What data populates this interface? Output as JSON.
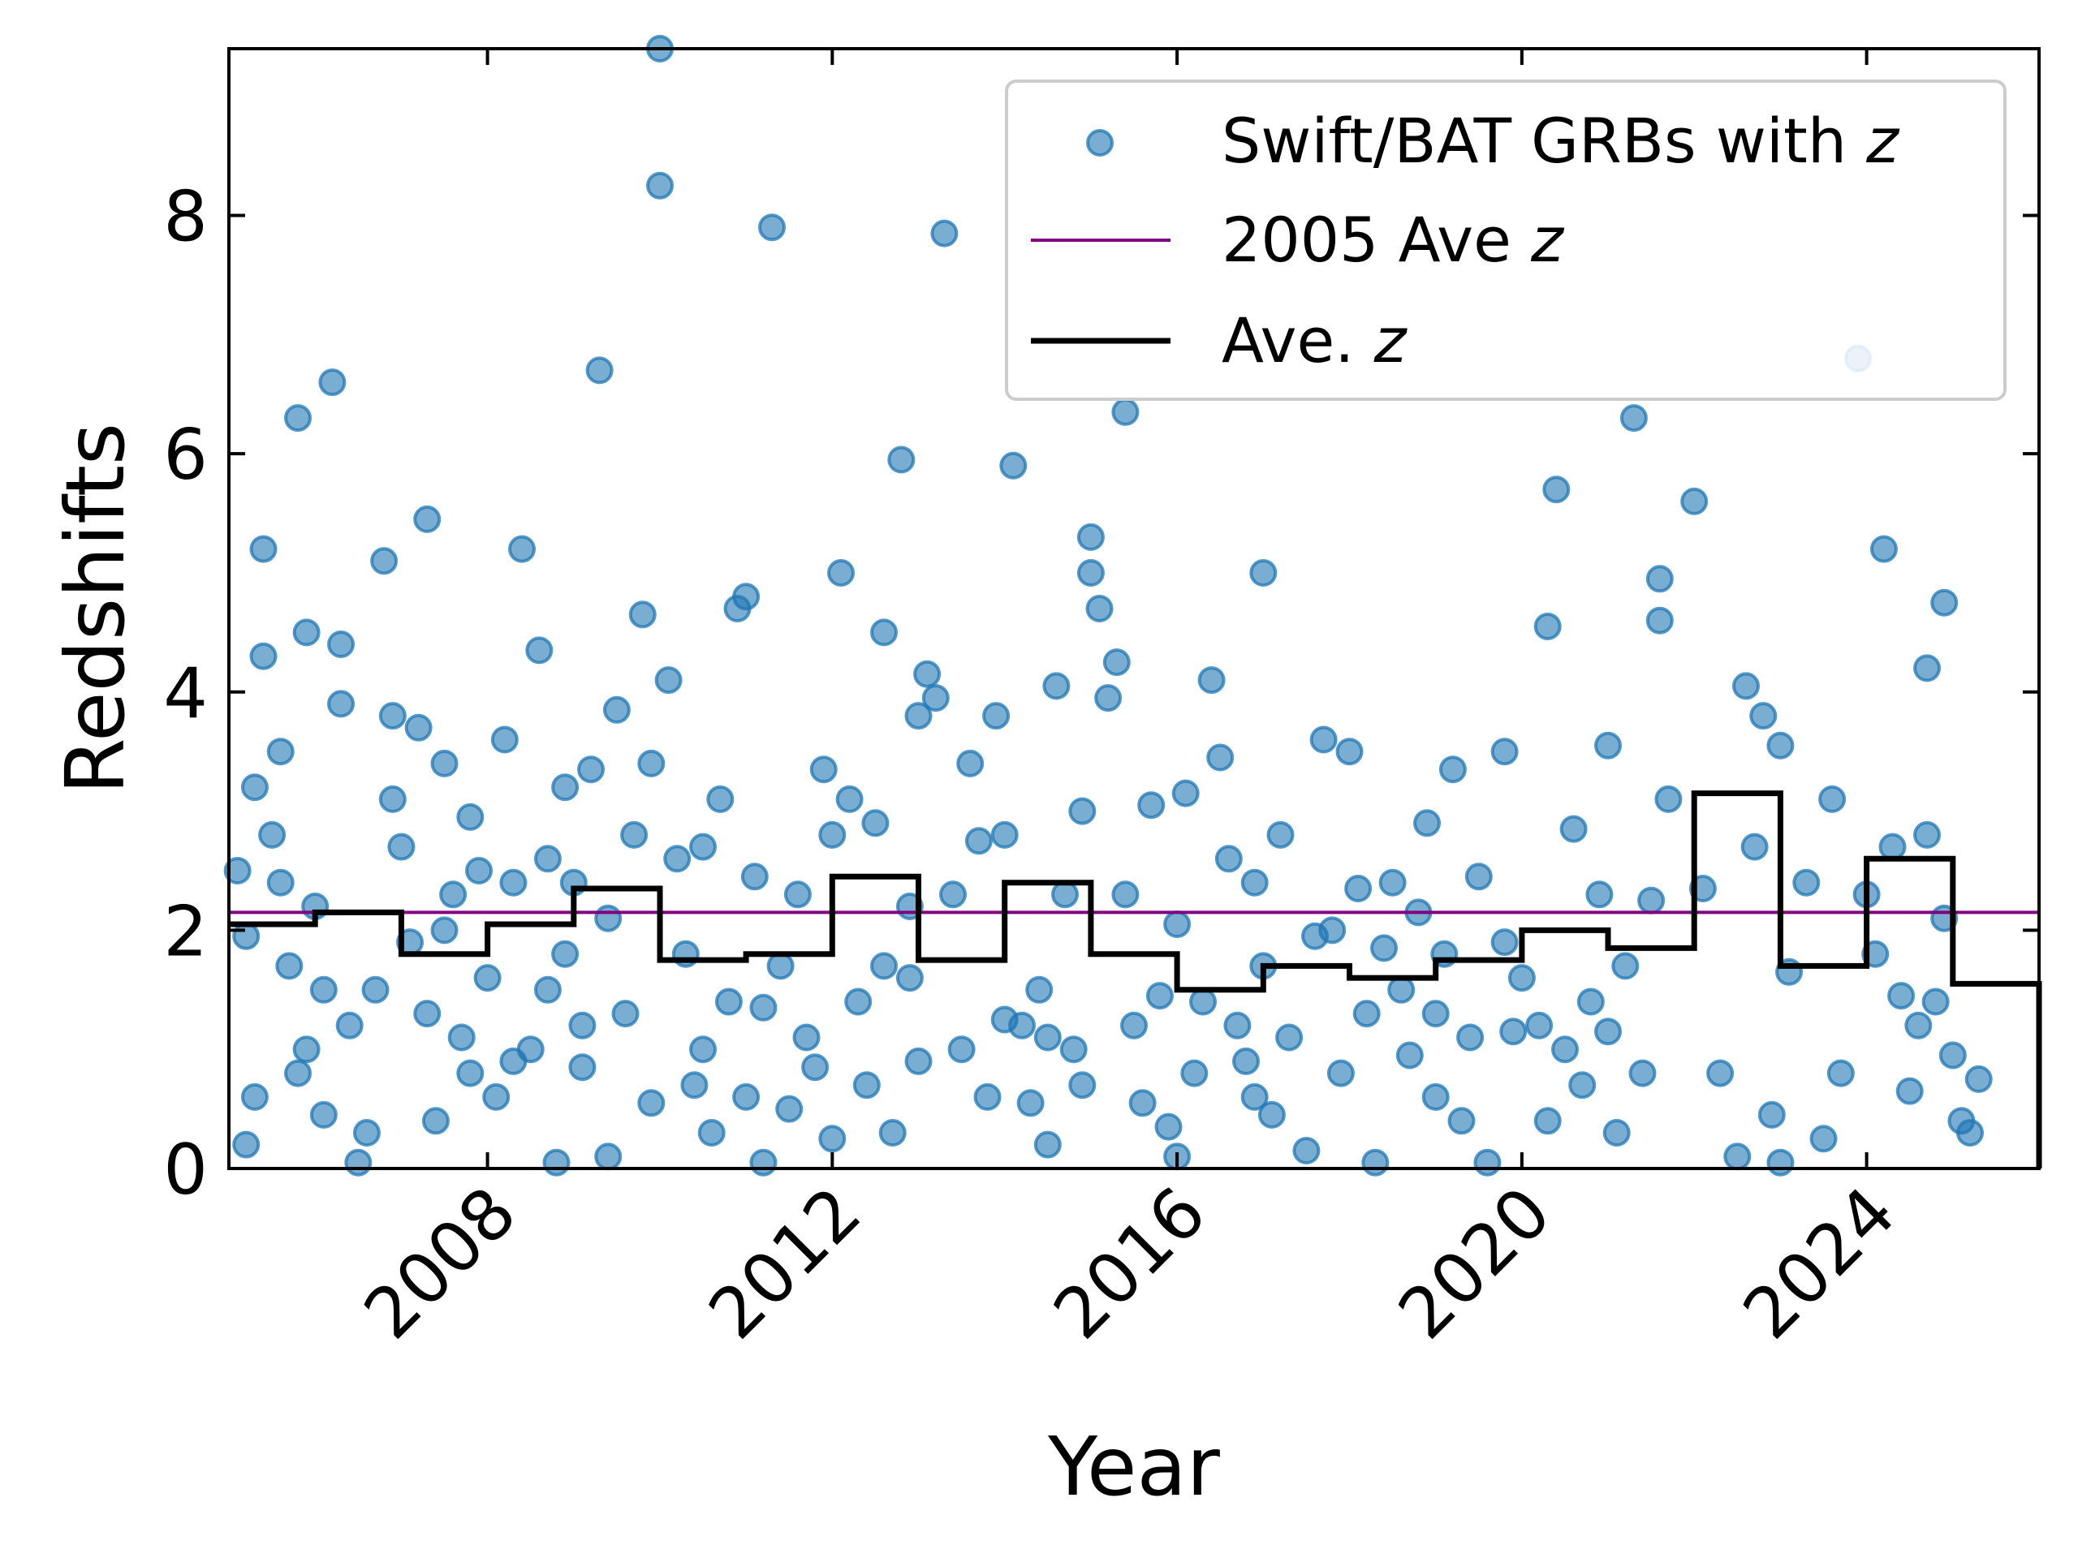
{
  "chart_data": {
    "type": "scatter",
    "xlabel": "Year",
    "ylabel": "Redshifts",
    "xlim": [
      2005.0,
      2026.0
    ],
    "ylim": [
      0,
      9.4
    ],
    "x_ticks": [
      2008,
      2012,
      2016,
      2020,
      2024
    ],
    "y_ticks": [
      0,
      2,
      4,
      6,
      8
    ],
    "grid": false,
    "legend_position": "top-right",
    "legend": [
      {
        "key": "scatter",
        "label": "Swift/BAT GRBs with z"
      },
      {
        "key": "reference",
        "label": "2005 Ave z"
      },
      {
        "key": "average",
        "label": "Ave. z"
      }
    ],
    "reference_line": {
      "name": "2005 Ave z",
      "value": 2.15,
      "color": "#800080"
    },
    "average_step": {
      "name": "Ave. z",
      "color": "#000000",
      "edges": [
        2005.0,
        2006.0,
        2007.0,
        2008.0,
        2009.0,
        2010.0,
        2011.0,
        2012.0,
        2013.0,
        2014.0,
        2015.0,
        2016.0,
        2017.0,
        2018.0,
        2019.0,
        2020.0,
        2021.0,
        2022.0,
        2023.0,
        2024.0,
        2025.0,
        2026.0
      ],
      "values": [
        2.05,
        2.15,
        1.8,
        2.05,
        2.35,
        1.75,
        1.8,
        2.45,
        1.75,
        2.4,
        1.8,
        1.5,
        1.7,
        1.6,
        1.75,
        2.0,
        1.85,
        3.15,
        1.7,
        2.6,
        1.55
      ]
    },
    "series": [
      {
        "name": "Swift/BAT GRBs with z",
        "color": "#1f77b4",
        "points": [
          [
            2005.1,
            2.5
          ],
          [
            2005.2,
            1.95
          ],
          [
            2005.3,
            0.6
          ],
          [
            2005.2,
            0.2
          ],
          [
            2005.4,
            5.2
          ],
          [
            2005.5,
            2.8
          ],
          [
            2005.6,
            2.4
          ],
          [
            2005.7,
            1.7
          ],
          [
            2005.8,
            6.3
          ],
          [
            2005.8,
            0.8
          ],
          [
            2005.9,
            1.0
          ],
          [
            2005.3,
            3.2
          ],
          [
            2005.4,
            4.3
          ],
          [
            2005.6,
            3.5
          ],
          [
            2005.9,
            4.5
          ],
          [
            2006.0,
            2.2
          ],
          [
            2006.1,
            0.45
          ],
          [
            2006.2,
            6.6
          ],
          [
            2006.3,
            4.4
          ],
          [
            2006.3,
            3.9
          ],
          [
            2006.1,
            1.5
          ],
          [
            2006.4,
            1.2
          ],
          [
            2006.5,
            0.05
          ],
          [
            2006.6,
            0.3
          ],
          [
            2006.7,
            1.5
          ],
          [
            2006.8,
            5.1
          ],
          [
            2006.9,
            3.8
          ],
          [
            2006.9,
            3.1
          ],
          [
            2007.0,
            2.7
          ],
          [
            2007.1,
            1.9
          ],
          [
            2007.2,
            3.7
          ],
          [
            2007.3,
            5.45
          ],
          [
            2007.3,
            1.3
          ],
          [
            2007.4,
            0.4
          ],
          [
            2007.5,
            2.0
          ],
          [
            2007.5,
            3.4
          ],
          [
            2007.6,
            2.3
          ],
          [
            2007.7,
            1.1
          ],
          [
            2007.8,
            2.95
          ],
          [
            2007.8,
            0.8
          ],
          [
            2007.9,
            2.5
          ],
          [
            2008.0,
            1.6
          ],
          [
            2008.1,
            0.6
          ],
          [
            2008.2,
            3.6
          ],
          [
            2008.3,
            2.4
          ],
          [
            2008.3,
            0.9
          ],
          [
            2008.4,
            5.2
          ],
          [
            2008.5,
            1.0
          ],
          [
            2008.6,
            4.35
          ],
          [
            2008.7,
            2.6
          ],
          [
            2008.7,
            1.5
          ],
          [
            2008.8,
            0.05
          ],
          [
            2008.9,
            3.2
          ],
          [
            2008.9,
            1.8
          ],
          [
            2009.0,
            2.4
          ],
          [
            2009.1,
            0.85
          ],
          [
            2009.1,
            1.2
          ],
          [
            2009.2,
            3.35
          ],
          [
            2009.3,
            6.7
          ],
          [
            2009.4,
            2.1
          ],
          [
            2009.4,
            0.1
          ],
          [
            2009.5,
            3.85
          ],
          [
            2009.6,
            1.3
          ],
          [
            2009.7,
            2.8
          ],
          [
            2009.8,
            4.65
          ],
          [
            2009.9,
            3.4
          ],
          [
            2009.9,
            0.55
          ],
          [
            2010.0,
            9.4
          ],
          [
            2010.0,
            8.25
          ],
          [
            2010.1,
            4.1
          ],
          [
            2010.2,
            2.6
          ],
          [
            2010.3,
            1.8
          ],
          [
            2010.4,
            0.7
          ],
          [
            2010.5,
            2.7
          ],
          [
            2010.5,
            1.0
          ],
          [
            2010.6,
            0.3
          ],
          [
            2010.7,
            3.1
          ],
          [
            2010.8,
            1.4
          ],
          [
            2010.9,
            4.7
          ],
          [
            2011.0,
            4.8
          ],
          [
            2011.0,
            0.6
          ],
          [
            2011.1,
            2.45
          ],
          [
            2011.2,
            1.35
          ],
          [
            2011.2,
            0.05
          ],
          [
            2011.3,
            7.9
          ],
          [
            2011.4,
            1.7
          ],
          [
            2011.5,
            0.5
          ],
          [
            2011.6,
            2.3
          ],
          [
            2011.7,
            1.1
          ],
          [
            2011.8,
            0.85
          ],
          [
            2011.9,
            3.35
          ],
          [
            2012.0,
            2.8
          ],
          [
            2012.0,
            0.25
          ],
          [
            2012.1,
            5.0
          ],
          [
            2012.2,
            3.1
          ],
          [
            2012.3,
            1.4
          ],
          [
            2012.4,
            0.7
          ],
          [
            2012.5,
            2.9
          ],
          [
            2012.6,
            4.5
          ],
          [
            2012.6,
            1.7
          ],
          [
            2012.7,
            0.3
          ],
          [
            2012.8,
            5.95
          ],
          [
            2012.9,
            2.2
          ],
          [
            2012.9,
            1.6
          ],
          [
            2013.0,
            3.8
          ],
          [
            2013.0,
            0.9
          ],
          [
            2013.1,
            4.15
          ],
          [
            2013.2,
            3.95
          ],
          [
            2013.3,
            7.85
          ],
          [
            2013.4,
            2.3
          ],
          [
            2013.5,
            1.0
          ],
          [
            2013.6,
            3.4
          ],
          [
            2013.7,
            2.75
          ],
          [
            2013.8,
            0.6
          ],
          [
            2013.9,
            3.8
          ],
          [
            2014.0,
            2.8
          ],
          [
            2014.0,
            1.25
          ],
          [
            2014.1,
            5.9
          ],
          [
            2014.2,
            1.2
          ],
          [
            2014.3,
            0.55
          ],
          [
            2014.4,
            1.5
          ],
          [
            2014.5,
            1.1
          ],
          [
            2014.5,
            0.2
          ],
          [
            2014.6,
            4.05
          ],
          [
            2014.7,
            2.3
          ],
          [
            2014.8,
            1.0
          ],
          [
            2014.9,
            3.0
          ],
          [
            2014.9,
            0.7
          ],
          [
            2015.0,
            5.3
          ],
          [
            2015.0,
            5.0
          ],
          [
            2015.1,
            4.7
          ],
          [
            2015.2,
            3.95
          ],
          [
            2015.3,
            4.25
          ],
          [
            2015.4,
            6.35
          ],
          [
            2015.4,
            2.3
          ],
          [
            2015.5,
            1.2
          ],
          [
            2015.6,
            0.55
          ],
          [
            2015.7,
            3.05
          ],
          [
            2015.8,
            1.45
          ],
          [
            2015.9,
            0.35
          ],
          [
            2016.0,
            2.05
          ],
          [
            2016.0,
            0.1
          ],
          [
            2016.1,
            3.15
          ],
          [
            2016.2,
            0.8
          ],
          [
            2016.3,
            1.4
          ],
          [
            2016.4,
            4.1
          ],
          [
            2016.5,
            3.45
          ],
          [
            2016.6,
            2.6
          ],
          [
            2016.7,
            1.2
          ],
          [
            2016.8,
            0.9
          ],
          [
            2016.9,
            2.4
          ],
          [
            2016.9,
            0.6
          ],
          [
            2017.0,
            5.0
          ],
          [
            2017.0,
            1.7
          ],
          [
            2017.1,
            0.45
          ],
          [
            2017.2,
            2.8
          ],
          [
            2017.3,
            1.1
          ],
          [
            2017.5,
            0.15
          ],
          [
            2017.6,
            1.95
          ],
          [
            2017.7,
            3.6
          ],
          [
            2017.8,
            2.0
          ],
          [
            2017.9,
            0.8
          ],
          [
            2018.0,
            3.5
          ],
          [
            2018.1,
            2.35
          ],
          [
            2018.2,
            1.3
          ],
          [
            2018.3,
            0.05
          ],
          [
            2018.4,
            1.85
          ],
          [
            2018.5,
            2.4
          ],
          [
            2018.6,
            1.5
          ],
          [
            2018.7,
            0.95
          ],
          [
            2018.8,
            2.15
          ],
          [
            2018.9,
            2.9
          ],
          [
            2019.0,
            1.3
          ],
          [
            2019.0,
            0.6
          ],
          [
            2019.1,
            1.8
          ],
          [
            2019.2,
            3.35
          ],
          [
            2019.3,
            0.4
          ],
          [
            2019.4,
            1.1
          ],
          [
            2019.5,
            2.45
          ],
          [
            2019.6,
            0.05
          ],
          [
            2019.8,
            3.5
          ],
          [
            2019.8,
            1.9
          ],
          [
            2019.9,
            1.15
          ],
          [
            2020.0,
            1.6
          ],
          [
            2020.2,
            1.2
          ],
          [
            2020.3,
            4.55
          ],
          [
            2020.3,
            0.4
          ],
          [
            2020.4,
            5.7
          ],
          [
            2020.5,
            1.0
          ],
          [
            2020.6,
            2.85
          ],
          [
            2020.7,
            0.7
          ],
          [
            2020.8,
            1.4
          ],
          [
            2020.9,
            2.3
          ],
          [
            2021.0,
            3.55
          ],
          [
            2021.0,
            1.15
          ],
          [
            2021.1,
            0.3
          ],
          [
            2021.2,
            1.7
          ],
          [
            2021.3,
            6.3
          ],
          [
            2021.4,
            0.8
          ],
          [
            2021.5,
            2.25
          ],
          [
            2021.6,
            4.95
          ],
          [
            2021.6,
            4.6
          ],
          [
            2021.7,
            3.1
          ],
          [
            2022.0,
            5.6
          ],
          [
            2022.1,
            2.35
          ],
          [
            2022.3,
            0.8
          ],
          [
            2022.5,
            0.1
          ],
          [
            2022.6,
            4.05
          ],
          [
            2022.7,
            2.7
          ],
          [
            2022.8,
            3.8
          ],
          [
            2022.9,
            0.45
          ],
          [
            2023.0,
            3.55
          ],
          [
            2023.0,
            0.05
          ],
          [
            2023.1,
            1.65
          ],
          [
            2023.3,
            2.4
          ],
          [
            2023.5,
            0.25
          ],
          [
            2023.6,
            3.1
          ],
          [
            2023.7,
            0.8
          ],
          [
            2023.9,
            6.8
          ],
          [
            2024.0,
            2.3
          ],
          [
            2024.1,
            1.8
          ],
          [
            2024.2,
            5.2
          ],
          [
            2024.3,
            2.7
          ],
          [
            2024.4,
            1.45
          ],
          [
            2024.5,
            0.65
          ],
          [
            2024.6,
            1.2
          ],
          [
            2024.7,
            4.2
          ],
          [
            2024.7,
            2.8
          ],
          [
            2024.8,
            1.4
          ],
          [
            2024.9,
            4.75
          ],
          [
            2024.9,
            2.1
          ],
          [
            2025.0,
            0.95
          ],
          [
            2025.1,
            0.4
          ],
          [
            2025.2,
            0.3
          ],
          [
            2025.3,
            0.75
          ]
        ]
      }
    ]
  }
}
